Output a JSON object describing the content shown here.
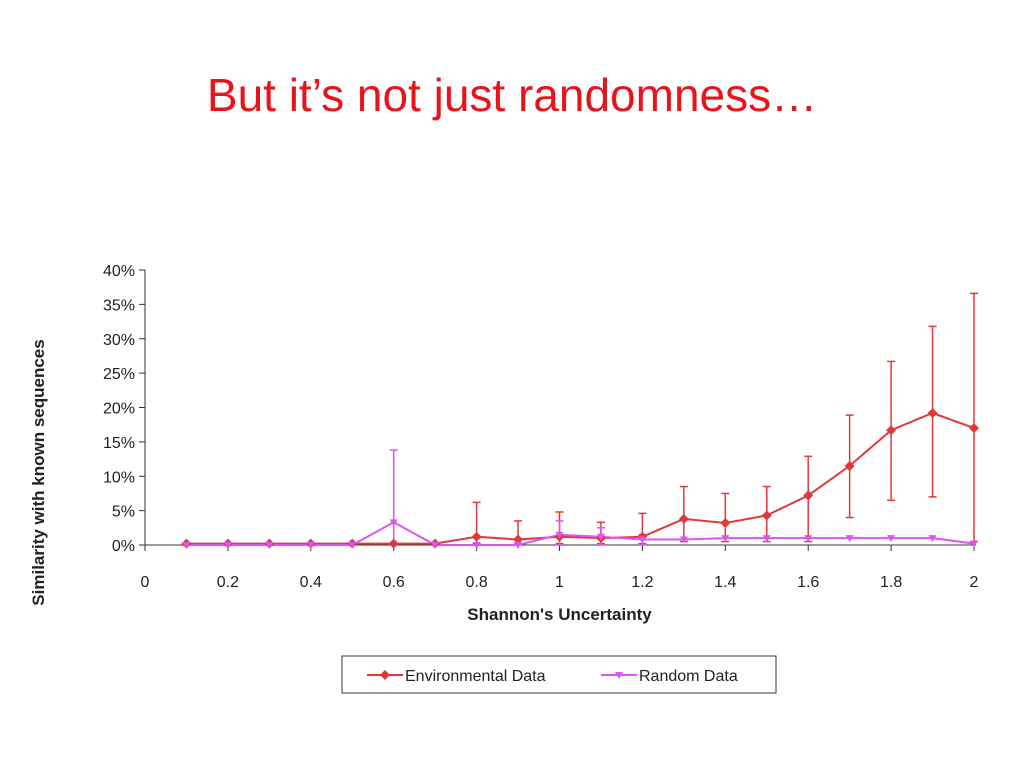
{
  "slide": {
    "title": "But it’s not just randomness…"
  },
  "chart_data": {
    "type": "line",
    "xlabel": "Shannon's Uncertainty",
    "ylabel": "Similarity with known sequences",
    "xlim": [
      0,
      2
    ],
    "ylim": [
      0,
      40
    ],
    "x_ticks": [
      "0",
      "0.2",
      "0.4",
      "0.6",
      "0.8",
      "1",
      "1.2",
      "1.4",
      "1.6",
      "1.8",
      "2"
    ],
    "y_ticks": [
      "0%",
      "5%",
      "10%",
      "15%",
      "20%",
      "25%",
      "30%",
      "35%",
      "40%"
    ],
    "legend_position": "bottom",
    "series": [
      {
        "name": "Environmental Data",
        "color": "#e0393b",
        "marker": "diamond",
        "x": [
          0.1,
          0.2,
          0.3,
          0.4,
          0.5,
          0.6,
          0.7,
          0.8,
          0.9,
          1.0,
          1.1,
          1.2,
          1.3,
          1.4,
          1.5,
          1.6,
          1.7,
          1.8,
          1.9,
          2.0
        ],
        "y": [
          0.2,
          0.2,
          0.2,
          0.2,
          0.2,
          0.2,
          0.2,
          1.2,
          0.8,
          1.2,
          1.0,
          1.2,
          3.8,
          3.2,
          4.3,
          7.2,
          11.5,
          16.7,
          19.2,
          17.0
        ],
        "err_low": [
          null,
          null,
          null,
          null,
          null,
          null,
          null,
          0.2,
          0.2,
          0.2,
          0.2,
          0.2,
          0.5,
          0.5,
          0.5,
          0.5,
          4.0,
          6.5,
          7.0,
          0.5
        ],
        "err_high": [
          null,
          null,
          null,
          null,
          null,
          null,
          null,
          6.2,
          3.5,
          4.8,
          3.3,
          4.6,
          8.5,
          7.5,
          8.5,
          12.9,
          18.9,
          26.7,
          31.8,
          36.6
        ]
      },
      {
        "name": "Random Data",
        "color": "#dd55f0",
        "marker": "triangle-down",
        "x": [
          0.1,
          0.2,
          0.3,
          0.4,
          0.5,
          0.6,
          0.7,
          0.8,
          0.9,
          1.0,
          1.1,
          1.2,
          1.3,
          1.4,
          1.5,
          1.6,
          1.7,
          1.8,
          1.9,
          2.0
        ],
        "y": [
          0,
          0,
          0,
          0,
          0,
          3.3,
          0,
          0,
          0,
          1.5,
          1.2,
          0.8,
          0.8,
          1.0,
          1.0,
          1.0,
          1.0,
          1.0,
          1.0,
          0.2
        ],
        "err_low": [
          null,
          null,
          null,
          null,
          null,
          0,
          null,
          null,
          null,
          0,
          0,
          0,
          null,
          null,
          null,
          null,
          null,
          null,
          null,
          null
        ],
        "err_high": [
          null,
          null,
          null,
          null,
          null,
          13.8,
          null,
          null,
          null,
          3.5,
          2.5,
          1.5,
          null,
          null,
          null,
          null,
          null,
          null,
          null,
          null
        ]
      }
    ]
  }
}
